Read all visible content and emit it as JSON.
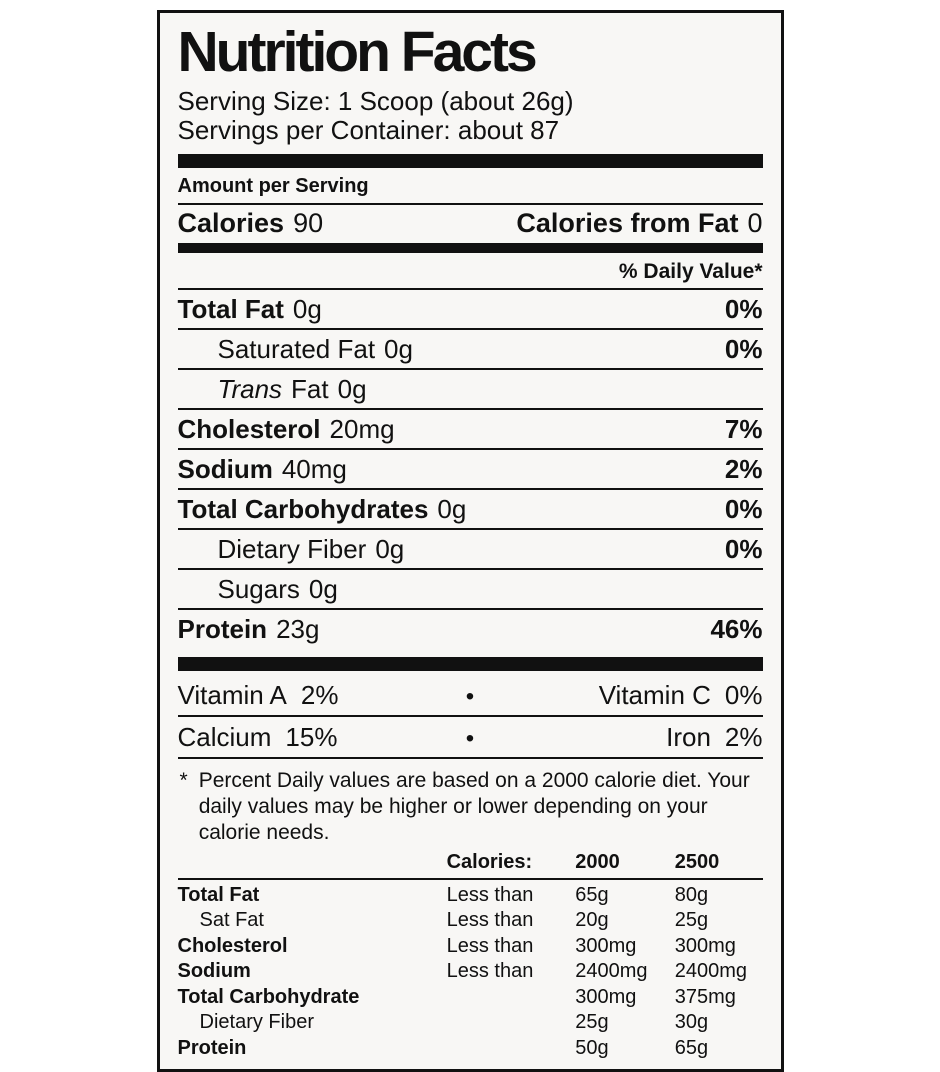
{
  "label": {
    "title": "Nutrition Facts",
    "serving": {
      "size": "Serving Size: 1 Scoop (about 26g)",
      "per_container": "Servings per Container: about 87"
    },
    "amount_per_serving": "Amount per Serving",
    "calories": {
      "name": "Calories",
      "value": "90",
      "from_fat_name": "Calories from Fat",
      "from_fat_value": "0"
    },
    "daily_value_header": "% Daily Value*",
    "nutrients": [
      {
        "name": "Total Fat",
        "amount": "0g",
        "dv": "0%"
      },
      {
        "name": "Saturated Fat",
        "amount": "0g",
        "dv": "0%"
      },
      {
        "name_italic": "Trans",
        "name": "Fat",
        "amount": "0g",
        "dv": ""
      },
      {
        "name": "Cholesterol",
        "amount": "20mg",
        "dv": "7%"
      },
      {
        "name": "Sodium",
        "amount": "40mg",
        "dv": "2%"
      },
      {
        "name": "Total Carbohydrates",
        "amount": "0g",
        "dv": "0%"
      },
      {
        "name": "Dietary Fiber",
        "amount": "0g",
        "dv": "0%"
      },
      {
        "name": "Sugars",
        "amount": "0g",
        "dv": ""
      },
      {
        "name": "Protein",
        "amount": "23g",
        "dv": "46%"
      }
    ],
    "vitamins": {
      "bullet": "•",
      "rows": [
        {
          "left_name": "Vitamin A",
          "left_value": "2%",
          "right_name": "Vitamin C",
          "right_value": "0%"
        },
        {
          "left_name": "Calcium",
          "left_value": "15%",
          "right_name": "Iron",
          "right_value": "2%"
        }
      ]
    },
    "footnote": {
      "symbol": "*",
      "text": "Percent Daily values are based on a 2000 calorie diet. Your daily values may be higher or lower depending on your calorie needs."
    },
    "reference_table": {
      "header": {
        "calories_label": "Calories:",
        "col_2000": "2000",
        "col_2500": "2500"
      },
      "rows": [
        {
          "name": "Total Fat",
          "qualifier": "Less than",
          "v2000": "65g",
          "v2500": "80g"
        },
        {
          "name": "Sat Fat",
          "qualifier": "Less than",
          "v2000": "20g",
          "v2500": "25g"
        },
        {
          "name": "Cholesterol",
          "qualifier": "Less than",
          "v2000": "300mg",
          "v2500": "300mg"
        },
        {
          "name": "Sodium",
          "qualifier": "Less than",
          "v2000": "2400mg",
          "v2500": "2400mg"
        },
        {
          "name": "Total Carbohydrate",
          "qualifier": "",
          "v2000": "300mg",
          "v2500": "375mg"
        },
        {
          "name": "Dietary Fiber",
          "qualifier": "",
          "v2000": "25g",
          "v2500": "30g"
        },
        {
          "name": "Protein",
          "qualifier": "",
          "v2000": "50g",
          "v2500": "65g"
        }
      ]
    },
    "colors": {
      "ink": "#111111",
      "label_bg": "#f8f7f5",
      "page_bg": "#ffffff"
    }
  }
}
